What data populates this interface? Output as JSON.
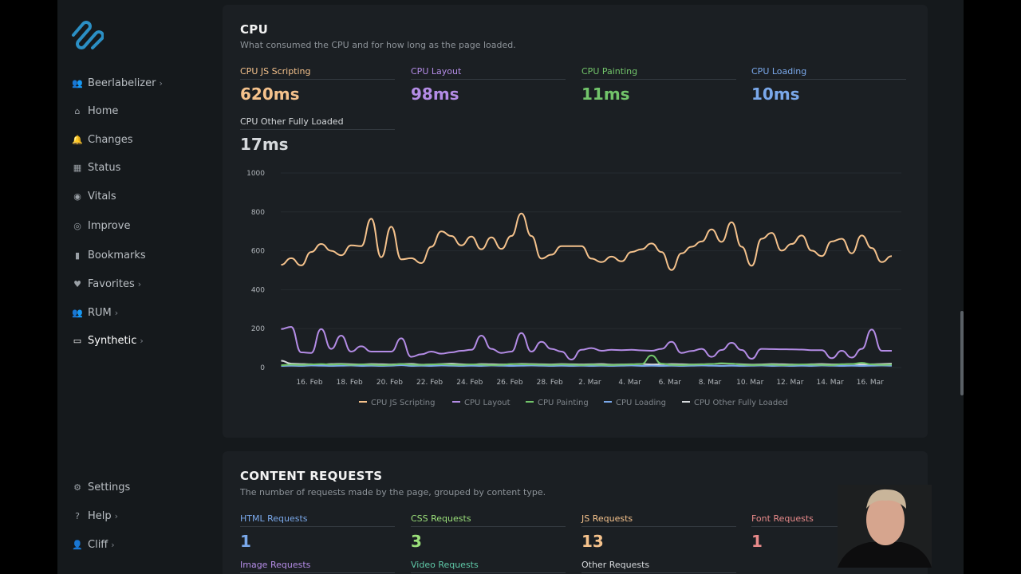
{
  "sidebar": {
    "items": [
      {
        "label": "Beerlabelizer",
        "icon": "users-icon",
        "chevron": true
      },
      {
        "label": "Home",
        "icon": "home-icon",
        "chevron": false
      },
      {
        "label": "Changes",
        "icon": "bell-icon",
        "chevron": false
      },
      {
        "label": "Status",
        "icon": "grid-icon",
        "chevron": false
      },
      {
        "label": "Vitals",
        "icon": "pulse-icon",
        "chevron": false
      },
      {
        "label": "Improve",
        "icon": "target-icon",
        "chevron": false
      },
      {
        "label": "Bookmarks",
        "icon": "bookmark-icon",
        "chevron": false
      },
      {
        "label": "Favorites",
        "icon": "heart-icon",
        "chevron": true
      },
      {
        "label": "RUM",
        "icon": "users-icon",
        "chevron": true
      },
      {
        "label": "Synthetic",
        "icon": "monitor-icon",
        "chevron": true,
        "active": true
      }
    ],
    "bottom": [
      {
        "label": "Settings",
        "icon": "gear-icon",
        "chevron": false
      },
      {
        "label": "Help",
        "icon": "help-icon",
        "chevron": true
      },
      {
        "label": "Cliff",
        "icon": "user-icon",
        "chevron": true
      }
    ],
    "chevron": "›"
  },
  "cpu": {
    "title": "CPU",
    "subtitle": "What consumed the CPU and for how long as the page loaded.",
    "metrics": [
      {
        "label": "CPU JS Scripting",
        "value": "620ms",
        "color": "#f5c28c"
      },
      {
        "label": "CPU Layout",
        "value": "98ms",
        "color": "#b48ce6"
      },
      {
        "label": "CPU Painting",
        "value": "11ms",
        "color": "#72c46a"
      },
      {
        "label": "CPU Loading",
        "value": "10ms",
        "color": "#7aa8ea"
      },
      {
        "label": "CPU Other Fully Loaded",
        "value": "17ms",
        "color": "#d6d9dc"
      }
    ]
  },
  "chart_data": {
    "type": "line",
    "ylim": [
      0,
      1000
    ],
    "yticks": [
      "0",
      "200",
      "400",
      "600",
      "800",
      "1000"
    ],
    "xticks": [
      "16. Feb",
      "18. Feb",
      "20. Feb",
      "22. Feb",
      "24. Feb",
      "26. Feb",
      "28. Feb",
      "2. Mar",
      "4. Mar",
      "6. Mar",
      "8. Mar",
      "10. Mar",
      "12. Mar",
      "14. Mar",
      "16. Mar"
    ],
    "grid": true,
    "legend": "bottom",
    "x": [
      "14 Feb 14:00",
      "15 Feb 02:00",
      "15 Feb 14:00",
      "16 Feb 02:00",
      "16 Feb 14:00",
      "17 Feb 02:00",
      "17 Feb 14:00",
      "18 Feb 02:00",
      "18 Feb 14:00",
      "19 Feb 02:00",
      "19 Feb 14:00",
      "20 Feb 02:00",
      "20 Feb 14:00",
      "21 Feb 02:00",
      "21 Feb 14:00",
      "22 Feb 02:00",
      "22 Feb 14:00",
      "23 Feb 02:00",
      "23 Feb 14:00",
      "24 Feb 02:00",
      "24 Feb 14:00",
      "25 Feb 02:00",
      "25 Feb 14:00",
      "26 Feb 02:00",
      "26 Feb 14:00",
      "27 Feb 02:00",
      "27 Feb 14:00",
      "28 Feb 02:00",
      "28 Feb 14:00",
      "29 Feb 02:00",
      "29 Feb 14:00",
      "1 Mar 02:00",
      "1 Mar 14:00",
      "2 Mar 02:00",
      "2 Mar 14:00",
      "3 Mar 02:00",
      "3 Mar 14:00",
      "4 Mar 02:00",
      "4 Mar 14:00",
      "5 Mar 02:00",
      "5 Mar 14:00",
      "6 Mar 02:00",
      "6 Mar 14:00",
      "7 Mar 02:00",
      "7 Mar 14:00",
      "8 Mar 02:00",
      "8 Mar 14:00",
      "9 Mar 02:00",
      "9 Mar 14:00",
      "10 Mar 02:00",
      "10 Mar 14:00",
      "11 Mar 02:00",
      "11 Mar 14:00",
      "12 Mar 02:00",
      "12 Mar 14:00",
      "13 Mar 02:00",
      "13 Mar 14:00",
      "14 Mar 02:00",
      "14 Mar 14:00",
      "15 Mar 02:00",
      "15 Mar 14:00",
      "16 Mar 02:00"
    ],
    "series": [
      {
        "name": "CPU JS Scripting",
        "color": "#f5c28c",
        "values": [
          528,
          562,
          525,
          594,
          635,
          600,
          577,
          628,
          624,
          765,
          567,
          724,
          556,
          562,
          537,
          621,
          700,
          676,
          628,
          673,
          608,
          669,
          610,
          676,
          792,
          676,
          560,
          580,
          624,
          624,
          624,
          560,
          542,
          570,
          546,
          594,
          608,
          638,
          594,
          501,
          587,
          621,
          648,
          710,
          646,
          747,
          621,
          523,
          662,
          692,
          601,
          635,
          679,
          601,
          573,
          648,
          662,
          587,
          679,
          614,
          542,
          573
        ]
      },
      {
        "name": "CPU Layout",
        "color": "#b48ce6",
        "values": [
          198,
          209,
          78,
          75,
          198,
          96,
          164,
          82,
          109,
          82,
          82,
          82,
          150,
          55,
          68,
          82,
          71,
          78,
          86,
          91,
          164,
          96,
          75,
          82,
          177,
          82,
          132,
          96,
          82,
          41,
          91,
          100,
          86,
          91,
          89,
          91,
          88,
          86,
          96,
          132,
          75,
          85,
          96,
          55,
          90,
          127,
          90,
          45,
          96,
          95,
          94,
          93,
          92,
          89,
          89,
          48,
          86,
          51,
          96,
          195,
          86,
          86
        ]
      },
      {
        "name": "CPU Painting",
        "color": "#72c46a",
        "values": [
          12,
          15,
          14,
          16,
          18,
          15,
          17,
          14,
          16,
          15,
          13,
          14,
          18,
          15,
          14,
          16,
          17,
          15,
          14,
          16,
          15,
          13,
          14,
          18,
          17,
          16,
          15,
          14,
          16,
          15,
          13,
          15,
          14,
          13,
          15,
          16,
          18,
          62,
          20,
          14,
          13,
          15,
          16,
          18,
          22,
          20,
          15,
          13,
          14,
          15,
          13,
          14,
          16,
          15,
          14,
          13,
          17,
          18,
          24,
          16,
          14,
          15
        ]
      },
      {
        "name": "CPU Loading",
        "color": "#7aa8ea",
        "values": [
          8,
          9,
          8,
          10,
          9,
          8,
          9,
          10,
          8,
          9,
          8,
          9,
          12,
          8,
          9,
          8,
          10,
          9,
          8,
          9,
          8,
          10,
          9,
          8,
          9,
          10,
          9,
          8,
          9,
          8,
          9,
          8,
          9,
          8,
          9,
          10,
          8,
          9,
          8,
          9,
          8,
          9,
          10,
          9,
          8,
          9,
          8,
          9,
          10,
          8,
          9,
          8,
          9,
          8,
          10,
          9,
          8,
          9,
          8,
          9,
          10,
          9
        ]
      },
      {
        "name": "CPU Other Fully Loaded",
        "color": "#d6d9dc",
        "values": [
          35,
          20,
          18,
          17,
          15,
          18,
          19,
          17,
          16,
          18,
          17,
          16,
          18,
          19,
          15,
          16,
          18,
          20,
          17,
          15,
          18,
          17,
          16,
          17,
          19,
          18,
          17,
          16,
          18,
          17,
          16,
          17,
          18,
          15,
          16,
          17,
          18,
          16,
          17,
          18,
          17,
          16,
          17,
          18,
          20,
          19,
          17,
          15,
          16,
          18,
          17,
          16,
          15,
          17,
          18,
          16,
          17,
          18,
          16,
          17,
          18,
          20
        ]
      }
    ]
  },
  "requests": {
    "title": "CONTENT REQUESTS",
    "subtitle": "The number of requests made by the page, grouped by content type.",
    "metrics": [
      {
        "label": "HTML Requests",
        "value": "1",
        "color": "#7aa8ea"
      },
      {
        "label": "CSS Requests",
        "value": "3",
        "color": "#9be07a"
      },
      {
        "label": "JS Requests",
        "value": "13",
        "color": "#f5c28c"
      },
      {
        "label": "Font Requests",
        "value": "1",
        "color": "#e88a8a"
      },
      {
        "label": "Image Requests",
        "value": "",
        "color": "#b48ce6"
      },
      {
        "label": "Video Requests",
        "value": "",
        "color": "#5fc9a8"
      },
      {
        "label": "Other Requests",
        "value": "",
        "color": "#d6d9dc"
      }
    ]
  }
}
